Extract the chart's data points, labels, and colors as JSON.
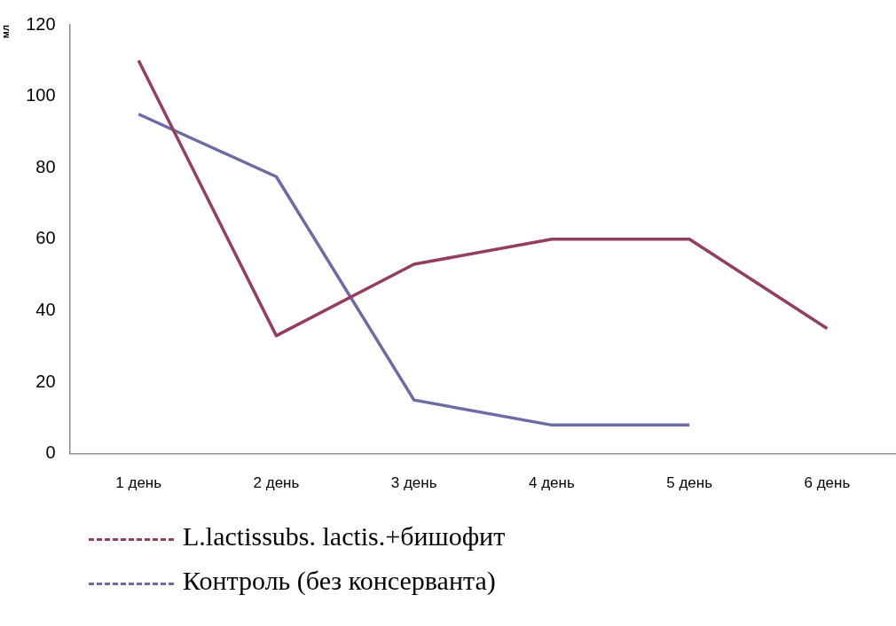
{
  "chart_data": {
    "type": "line",
    "ylabel": "мл",
    "categories": [
      "1 день",
      "2 день",
      "3 день",
      "4 день",
      "5 день",
      "6 день"
    ],
    "series": [
      {
        "name": "L.lactissubs. lactis.+бишофит",
        "color": "#943d62",
        "values": [
          110,
          33,
          53,
          60,
          60,
          35
        ]
      },
      {
        "name": "Контроль (без консерванта)",
        "color": "#6b6ba5",
        "values": [
          95,
          77.5,
          15,
          8,
          8,
          null
        ]
      }
    ],
    "ylim": [
      0,
      120
    ],
    "yticks": [
      0,
      20,
      40,
      60,
      80,
      100,
      120
    ],
    "legend": "bottom",
    "marker": "none",
    "line_style": "solid"
  }
}
